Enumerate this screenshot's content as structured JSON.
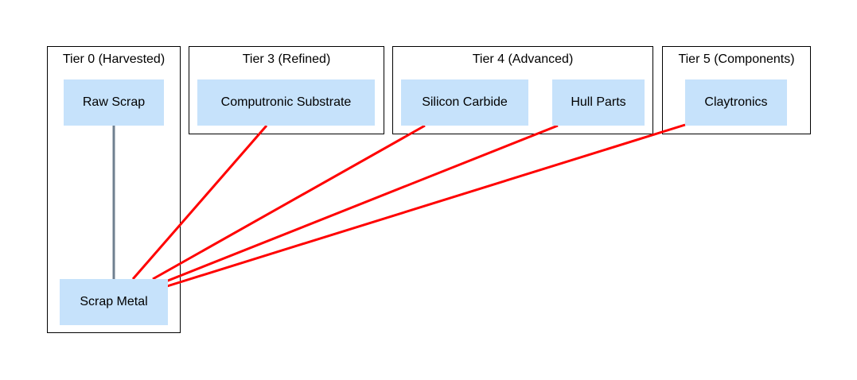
{
  "clusters": {
    "tier0": {
      "title": "Tier 0 (Harvested)"
    },
    "tier3": {
      "title": "Tier 3 (Refined)"
    },
    "tier4": {
      "title": "Tier 4 (Advanced)"
    },
    "tier5": {
      "title": "Tier 5 (Components)"
    }
  },
  "nodes": {
    "raw_scrap": "Raw Scrap",
    "scrap_metal": "Scrap Metal",
    "computronic_substrate": "Computronic Substrate",
    "silicon_carbide": "Silicon Carbide",
    "hull_parts": "Hull Parts",
    "claytronics": "Claytronics"
  },
  "colors": {
    "node_fill": "#c6e2fb",
    "harvest_edge": "#708090",
    "usage_edge": "#ff0000"
  }
}
